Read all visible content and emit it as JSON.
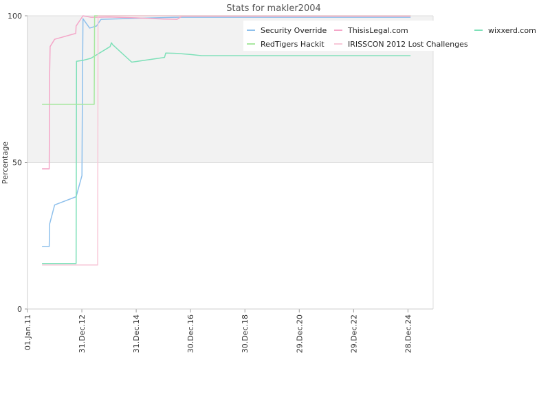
{
  "chart_data": {
    "type": "line",
    "title": "Stats for makler2004",
    "xlabel": "",
    "ylabel": "Percentage",
    "ylim": [
      0,
      100
    ],
    "yticks": [
      "0",
      "50",
      "100"
    ],
    "xlim": [
      "2011-01-01",
      "2025-12-01"
    ],
    "xticks": [
      {
        "date": "2011-01-01",
        "label": "01.Jan.11"
      },
      {
        "date": "2012-12-31",
        "label": "31.Dec.12"
      },
      {
        "date": "2014-12-31",
        "label": "31.Dec.14"
      },
      {
        "date": "2016-12-30",
        "label": "30.Dec.16"
      },
      {
        "date": "2018-12-30",
        "label": "30.Dec.18"
      },
      {
        "date": "2020-12-29",
        "label": "29.Dec.20"
      },
      {
        "date": "2022-12-29",
        "label": "29.Dec.22"
      },
      {
        "date": "2024-12-28",
        "label": "28.Dec.24"
      }
    ],
    "grid": true,
    "shaded_band": [
      50,
      100
    ],
    "legend_position": "top-right",
    "legend_columns": 3,
    "series": [
      {
        "name": "Security Override",
        "color": "#8ec0ec",
        "points": [
          [
            "2011-07-15",
            21.3
          ],
          [
            "2011-10-20",
            21.3
          ],
          [
            "2011-10-25",
            29
          ],
          [
            "2012-01-01",
            35.5
          ],
          [
            "2012-10-15",
            38.3
          ],
          [
            "2013-01-01",
            45.5
          ],
          [
            "2013-01-08",
            74
          ],
          [
            "2013-01-15",
            99
          ],
          [
            "2013-04-15",
            95.8
          ],
          [
            "2013-07-15",
            96.5
          ],
          [
            "2013-09-15",
            98.8
          ],
          [
            "2016-07-01",
            99.5
          ],
          [
            "2025-02-01",
            99.5
          ]
        ]
      },
      {
        "name": "ThisisLegal.com",
        "color": "#f4a6c8",
        "points": [
          [
            "2011-07-15",
            47.8
          ],
          [
            "2011-10-20",
            47.8
          ],
          [
            "2011-10-25",
            80
          ],
          [
            "2011-11-01",
            89.5
          ],
          [
            "2012-01-01",
            92
          ],
          [
            "2012-10-10",
            94
          ],
          [
            "2012-10-15",
            96.5
          ],
          [
            "2013-01-15",
            100
          ],
          [
            "2013-05-01",
            99.5
          ],
          [
            "2013-07-15",
            99.5
          ],
          [
            "2014-01-01",
            99.6
          ],
          [
            "2015-01-01",
            99.3
          ],
          [
            "2015-06-01",
            99.1
          ],
          [
            "2016-01-01",
            98.9
          ],
          [
            "2016-07-01",
            98.8
          ],
          [
            "2016-09-01",
            99.8
          ],
          [
            "2025-02-01",
            99.8
          ]
        ]
      },
      {
        "name": "wixxerd.com",
        "color": "#7de0b8",
        "points": [
          [
            "2011-07-15",
            15.5
          ],
          [
            "2012-10-15",
            15.5
          ],
          [
            "2012-10-20",
            84.5
          ],
          [
            "2013-01-15",
            84.8
          ],
          [
            "2013-05-01",
            85.5
          ],
          [
            "2014-01-15",
            89.5
          ],
          [
            "2014-02-01",
            90.8
          ],
          [
            "2014-02-15",
            90.2
          ],
          [
            "2014-11-01",
            84.2
          ],
          [
            "2016-01-15",
            85.8
          ],
          [
            "2016-02-01",
            87.3
          ],
          [
            "2016-07-01",
            87.2
          ],
          [
            "2017-01-01",
            86.8
          ],
          [
            "2017-06-01",
            86.4
          ],
          [
            "2025-02-01",
            86.4
          ]
        ]
      },
      {
        "name": "RedTigers Hackit",
        "color": "#a8e8a0",
        "points": [
          [
            "2011-07-15",
            69.8
          ],
          [
            "2013-06-15",
            69.8
          ],
          [
            "2013-06-20",
            100
          ],
          [
            "2025-02-01",
            100
          ]
        ]
      },
      {
        "name": "IRISSCON 2012 Lost Challenges",
        "color": "#f8c8d8",
        "points": [
          [
            "2011-07-15",
            15
          ],
          [
            "2013-08-01",
            15
          ],
          [
            "2013-08-05",
            100
          ],
          [
            "2025-02-01",
            100
          ]
        ]
      }
    ],
    "legend_order": [
      "Security Override",
      "ThisisLegal.com",
      "wixxerd.com",
      "RedTigers Hackit",
      "IRISSCON 2012 Lost Challenges"
    ]
  }
}
